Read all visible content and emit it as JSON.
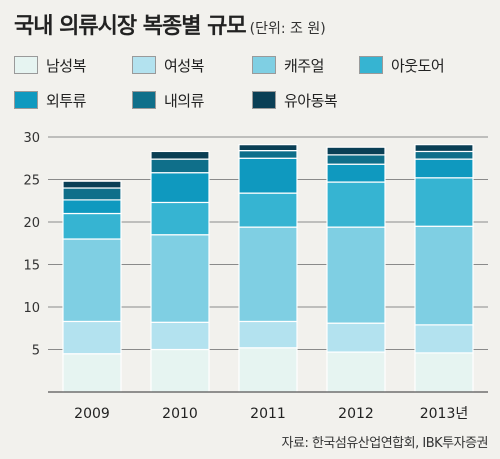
{
  "title": "국내 의류시장 복종별 규모",
  "unit_label": "(단위: 조 원)",
  "source": "자료: 한국섬유산업연합회, IBK투자증권",
  "chart_data": {
    "type": "bar",
    "stacked": true,
    "categories": [
      "2009",
      "2010",
      "2011",
      "2012",
      "2013년"
    ],
    "ylim": [
      0,
      30
    ],
    "yticks": [
      5,
      10,
      15,
      20,
      25,
      30
    ],
    "grid": true,
    "legend_position": "top",
    "series": [
      {
        "name": "남성복",
        "color": "#e6f4f1",
        "values": [
          4.5,
          5.0,
          5.2,
          4.7,
          4.6
        ]
      },
      {
        "name": "여성복",
        "color": "#b3e2ef",
        "values": [
          3.8,
          3.2,
          3.1,
          3.4,
          3.3
        ]
      },
      {
        "name": "캐주얼",
        "color": "#7fcfe3",
        "values": [
          9.7,
          10.3,
          11.1,
          11.3,
          11.6
        ]
      },
      {
        "name": "아웃도어",
        "color": "#36b4d2",
        "values": [
          3.0,
          3.8,
          4.0,
          5.3,
          5.7
        ]
      },
      {
        "name": "외투류",
        "color": "#0f99bf",
        "values": [
          1.6,
          3.5,
          4.1,
          2.1,
          2.2
        ]
      },
      {
        "name": "내의류",
        "color": "#0f6f8a",
        "values": [
          1.4,
          1.6,
          0.9,
          1.1,
          0.9
        ]
      },
      {
        "name": "유아동복",
        "color": "#0a3f55",
        "values": [
          0.8,
          0.9,
          0.7,
          0.9,
          0.8
        ]
      }
    ]
  }
}
